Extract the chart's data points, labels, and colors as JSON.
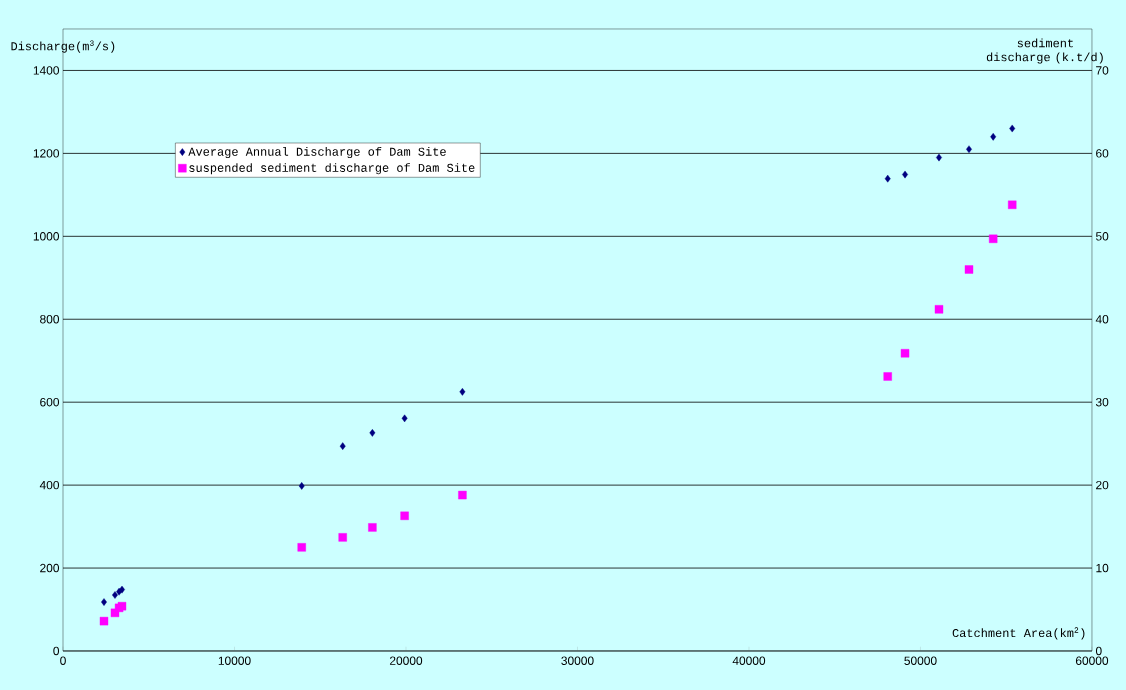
{
  "chart_data": {
    "type": "scatter",
    "xlabel": "Catchment Area(km$^{2}$)",
    "ylabel": "Discharge(m$^{3}$/s)",
    "y2label": "sediment discharge (k.t/d)",
    "series": [
      {
        "name": "Average Annual Discharge of Dam Site",
        "color": "#000080",
        "marker": "diamond",
        "x": [
          2390,
          3030,
          3270,
          3440,
          13920,
          16310,
          18040,
          19920,
          23290,
          48090,
          49100,
          51080,
          52830,
          54240,
          55350
        ],
        "values": [
          118,
          135,
          143,
          148,
          398,
          494,
          526,
          561,
          625,
          1139,
          1149,
          1190,
          1210,
          1240,
          1260
        ]
      },
      {
        "name": "suspended sediment discharge of Dam Site",
        "color": "#ff00ff",
        "marker": "square",
        "axis": "y2",
        "x": [
          2390,
          3030,
          3270,
          3440,
          13920,
          16310,
          18040,
          19920,
          23290,
          48090,
          49100,
          51080,
          52830,
          54240,
          55350
        ],
        "values": [
          3.6,
          4.6,
          5.2,
          5.4,
          12.5,
          13.7,
          14.9,
          16.3,
          18.8,
          33.1,
          35.9,
          41.2,
          46.0,
          49.7,
          53.8
        ]
      }
    ],
    "xlim": [
      0,
      60000
    ],
    "xticks": [
      0,
      10000,
      20000,
      30000,
      40000,
      50000,
      60000
    ],
    "ylim": [
      0,
      1500
    ],
    "yticks": [
      0,
      200,
      400,
      600,
      800,
      1000,
      1200,
      1400
    ],
    "y2lim": [
      0,
      75
    ],
    "y2ticks": [
      0,
      10,
      20,
      30,
      40,
      50,
      60,
      70
    ],
    "grid": "y",
    "legend": "top left"
  }
}
